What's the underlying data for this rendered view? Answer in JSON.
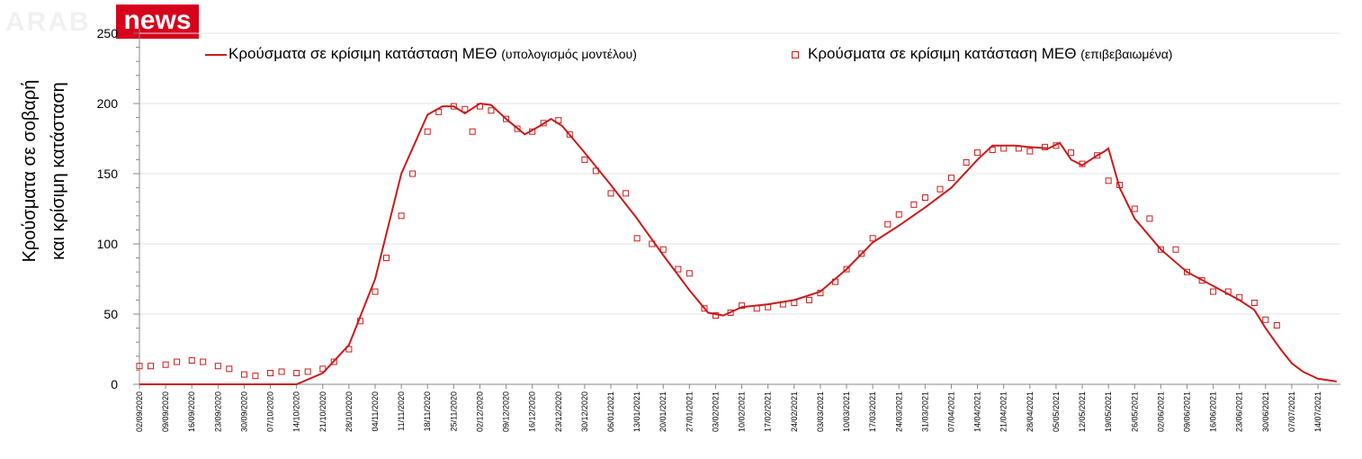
{
  "brand": {
    "ghost": "ARAB",
    "name": "news"
  },
  "colors": {
    "series": "#cc1a1a",
    "axis": "#888888",
    "grid": "#e3e3e3",
    "brand": "#d6001c"
  },
  "chart_data": {
    "type": "line",
    "title": "",
    "xlabel": "",
    "ylabel": [
      "Κρούσματα σε σοβαρή",
      "και κρίσιμη κατάσταση"
    ],
    "ylim": [
      0,
      250
    ],
    "xlim": [
      "2020-09-02",
      "2021-07-20"
    ],
    "yticks": [
      "0",
      "50",
      "100",
      "150",
      "200",
      "250"
    ],
    "xticks": [
      "02/09/2020",
      "09/09/2020",
      "16/09/2020",
      "23/09/2020",
      "30/09/2020",
      "07/10/2020",
      "14/10/2020",
      "21/10/2020",
      "28/10/2020",
      "04/11/2020",
      "11/11/2020",
      "18/11/2020",
      "25/11/2020",
      "02/12/2020",
      "09/12/2020",
      "16/12/2020",
      "23/12/2020",
      "30/12/2020",
      "06/01/2021",
      "13/01/2021",
      "20/01/2021",
      "27/01/2021",
      "03/02/2021",
      "10/02/2021",
      "17/02/2021",
      "24/02/2021",
      "03/03/2021",
      "10/03/2021",
      "17/03/2021",
      "24/03/2021",
      "31/03/2021",
      "07/04/2021",
      "14/04/2021",
      "21/04/2021",
      "28/04/2021",
      "05/05/2021",
      "12/05/2021",
      "19/05/2021",
      "26/05/2021",
      "02/06/2021",
      "09/06/2021",
      "16/06/2021",
      "23/06/2021",
      "30/06/2021",
      "07/07/2021",
      "14/07/2021"
    ],
    "grid": true,
    "legend_position": "top",
    "series": [
      {
        "name": "Κρούσματα σε κρίσιμη κατάσταση ΜΕΘ",
        "name_suffix": "(υπολογισμός μοντέλου)",
        "kind": "line",
        "x": [
          "2020-09-02",
          "2020-10-14",
          "2020-10-21",
          "2020-10-28",
          "2020-11-04",
          "2020-11-11",
          "2020-11-18",
          "2020-11-22",
          "2020-11-25",
          "2020-11-28",
          "2020-12-02",
          "2020-12-05",
          "2020-12-09",
          "2020-12-14",
          "2020-12-18",
          "2020-12-21",
          "2020-12-24",
          "2020-12-30",
          "2021-01-06",
          "2021-01-13",
          "2021-01-20",
          "2021-01-27",
          "2021-02-01",
          "2021-02-05",
          "2021-02-10",
          "2021-02-17",
          "2021-02-24",
          "2021-03-03",
          "2021-03-10",
          "2021-03-17",
          "2021-03-24",
          "2021-03-31",
          "2021-04-07",
          "2021-04-14",
          "2021-04-18",
          "2021-04-24",
          "2021-04-28",
          "2021-05-03",
          "2021-05-06",
          "2021-05-09",
          "2021-05-12",
          "2021-05-16",
          "2021-05-18",
          "2021-05-19",
          "2021-05-22",
          "2021-05-26",
          "2021-06-02",
          "2021-06-09",
          "2021-06-16",
          "2021-06-23",
          "2021-06-27",
          "2021-06-30",
          "2021-07-04",
          "2021-07-07",
          "2021-07-10",
          "2021-07-14",
          "2021-07-19"
        ],
        "y": [
          0,
          0,
          8,
          28,
          75,
          150,
          192,
          198,
          198,
          193,
          200,
          199,
          189,
          178,
          184,
          189,
          184,
          165,
          142,
          118,
          92,
          67,
          51,
          49,
          55,
          57,
          60,
          66,
          82,
          101,
          113,
          126,
          140,
          160,
          170,
          170,
          169,
          168,
          172,
          160,
          156,
          163,
          166,
          168,
          140,
          118,
          96,
          80,
          70,
          60,
          53,
          40,
          25,
          15,
          9,
          4,
          2
        ]
      },
      {
        "name": "Κρούσματα σε κρίσιμη κατάσταση ΜΕΘ",
        "name_suffix": "(επιβεβαιωμένα)",
        "kind": "markers",
        "x": [
          "2020-09-02",
          "2020-09-05",
          "2020-09-09",
          "2020-09-12",
          "2020-09-16",
          "2020-09-19",
          "2020-09-23",
          "2020-09-26",
          "2020-09-30",
          "2020-10-03",
          "2020-10-07",
          "2020-10-10",
          "2020-10-14",
          "2020-10-17",
          "2020-10-21",
          "2020-10-24",
          "2020-10-28",
          "2020-10-31",
          "2020-11-04",
          "2020-11-07",
          "2020-11-11",
          "2020-11-14",
          "2020-11-18",
          "2020-11-21",
          "2020-11-25",
          "2020-11-28",
          "2020-11-30",
          "2020-12-02",
          "2020-12-05",
          "2020-12-09",
          "2020-12-12",
          "2020-12-16",
          "2020-12-19",
          "2020-12-23",
          "2020-12-26",
          "2020-12-30",
          "2021-01-02",
          "2021-01-06",
          "2021-01-10",
          "2021-01-13",
          "2021-01-17",
          "2021-01-20",
          "2021-01-24",
          "2021-01-27",
          "2021-01-31",
          "2021-02-03",
          "2021-02-07",
          "2021-02-10",
          "2021-02-14",
          "2021-02-17",
          "2021-02-21",
          "2021-02-24",
          "2021-02-28",
          "2021-03-03",
          "2021-03-07",
          "2021-03-10",
          "2021-03-14",
          "2021-03-17",
          "2021-03-21",
          "2021-03-24",
          "2021-03-28",
          "2021-03-31",
          "2021-04-04",
          "2021-04-07",
          "2021-04-11",
          "2021-04-14",
          "2021-04-18",
          "2021-04-21",
          "2021-04-25",
          "2021-04-28",
          "2021-05-02",
          "2021-05-05",
          "2021-05-09",
          "2021-05-12",
          "2021-05-16",
          "2021-05-19",
          "2021-05-22",
          "2021-05-26",
          "2021-05-30",
          "2021-06-02",
          "2021-06-06",
          "2021-06-09",
          "2021-06-13",
          "2021-06-16",
          "2021-06-20",
          "2021-06-23",
          "2021-06-27",
          "2021-06-30",
          "2021-07-03"
        ],
        "y": [
          13,
          13,
          14,
          16,
          17,
          16,
          13,
          11,
          7,
          6,
          8,
          9,
          8,
          9,
          11,
          16,
          25,
          45,
          66,
          90,
          120,
          150,
          180,
          194,
          198,
          196,
          180,
          198,
          195,
          189,
          182,
          180,
          186,
          188,
          178,
          160,
          152,
          136,
          136,
          104,
          100,
          96,
          82,
          79,
          54,
          49,
          51,
          56,
          54,
          55,
          57,
          58,
          60,
          65,
          73,
          82,
          93,
          104,
          114,
          121,
          128,
          133,
          139,
          147,
          158,
          165,
          167,
          168,
          168,
          166,
          169,
          170,
          165,
          157,
          163,
          145,
          142,
          125,
          118,
          96,
          96,
          80,
          74,
          66,
          66,
          62,
          58,
          46,
          42
        ]
      }
    ]
  }
}
